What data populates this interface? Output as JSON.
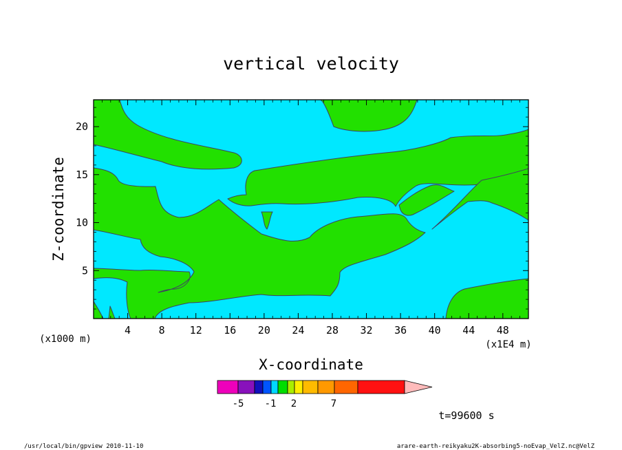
{
  "chart_data": {
    "type": "heatmap",
    "title": "vertical velocity",
    "xlabel": "X-coordinate",
    "ylabel": "Z-coordinate",
    "x_unit": "(x1E4 m)",
    "y_unit": "(x1000 m)",
    "x_ticks": [
      4,
      8,
      12,
      16,
      20,
      24,
      28,
      32,
      36,
      40,
      44,
      48
    ],
    "y_ticks": [
      5,
      10,
      15,
      20
    ],
    "xlim": [
      0,
      51
    ],
    "ylim": [
      0,
      22.8
    ],
    "colors": {
      "negative": "#00e8ff",
      "positive": "#22e000",
      "contour": "#404060"
    },
    "colorbar": {
      "colors": [
        "#ee00bb",
        "#8811bb",
        "#1111bb",
        "#0055ff",
        "#00d8ff",
        "#00dd00",
        "#aaee00",
        "#ffee00",
        "#ffbb00",
        "#ff9900",
        "#ff6600",
        "#ff1111",
        "#ff7777",
        "#ffbbbb"
      ],
      "labels": [
        "-5",
        "-1",
        "2",
        "7"
      ]
    },
    "time_label": "t=99600 s"
  },
  "footer": {
    "left": "/usr/local/bin/gpview  2010-11-10",
    "right": "arare-earth-reikyaku2K-absorbing5-noEvap_VelZ.nc@VelZ"
  }
}
